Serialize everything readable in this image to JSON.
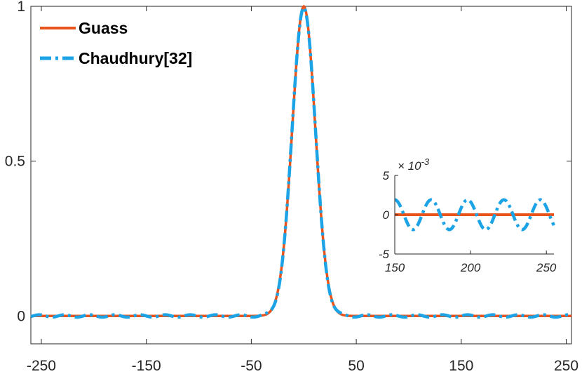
{
  "chart_data": [
    {
      "type": "line",
      "xlim": [
        -260,
        255
      ],
      "ylim": [
        -0.09,
        1.0
      ],
      "xticks": [
        -250,
        -150,
        -50,
        50,
        150,
        250
      ],
      "xtick_labels": [
        "-250",
        "-150",
        "-50",
        "50",
        "150",
        "250"
      ],
      "yticks": [
        0,
        0.5,
        1
      ],
      "ytick_labels": [
        "0",
        "0.5",
        "1"
      ],
      "grid": false,
      "legend_position": "top-left",
      "series": [
        {
          "name": "Guass",
          "color": "#e8541b",
          "style": "solid",
          "description_of_shape": "gaussian",
          "peak_x": 0,
          "peak_y": 1.0,
          "sigma": 11
        },
        {
          "name": "Chaudhury[32]",
          "color": "#1ca3e6",
          "style": "dash-dot",
          "description_of_shape": "gaussian plus small ripple",
          "peak_x": 0,
          "peak_y": 1.0,
          "sigma": 11,
          "ripple_amplitude": 0.0019,
          "ripple_period": 24
        }
      ]
    },
    {
      "type": "line",
      "role": "inset",
      "xlim": [
        150,
        255
      ],
      "ylim": [
        -0.005,
        0.005
      ],
      "xticks": [
        150,
        200,
        250
      ],
      "xtick_labels": [
        "150",
        "200",
        "250"
      ],
      "yticks": [
        -0.005,
        0,
        0.005
      ],
      "ytick_labels": [
        "-5",
        "0",
        "5"
      ],
      "exponent_label": {
        "base": "× 10",
        "exp": "-3"
      },
      "series": [
        {
          "name": "Guass",
          "color": "#e8541b",
          "constant_y": 0
        },
        {
          "name": "Chaudhury[32]",
          "color": "#1ca3e6",
          "ripple_amplitude": 0.0019,
          "ripple_period": 24,
          "phase_x": 150
        }
      ]
    }
  ],
  "legend": {
    "items": [
      {
        "label": "Guass",
        "color": "#e8541b",
        "style": "solid"
      },
      {
        "label": "Chaudhury[32]",
        "color": "#1ca3e6",
        "style": "dash-dot"
      }
    ]
  }
}
